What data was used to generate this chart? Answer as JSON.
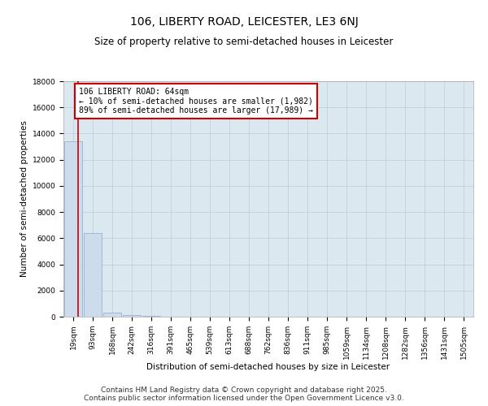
{
  "title": "106, LIBERTY ROAD, LEICESTER, LE3 6NJ",
  "subtitle": "Size of property relative to semi-detached houses in Leicester",
  "xlabel": "Distribution of semi-detached houses by size in Leicester",
  "ylabel": "Number of semi-detached properties",
  "bin_labels": [
    "19sqm",
    "93sqm",
    "168sqm",
    "242sqm",
    "316sqm",
    "391sqm",
    "465sqm",
    "539sqm",
    "613sqm",
    "688sqm",
    "762sqm",
    "836sqm",
    "911sqm",
    "985sqm",
    "1059sqm",
    "1134sqm",
    "1208sqm",
    "1282sqm",
    "1356sqm",
    "1431sqm",
    "1505sqm"
  ],
  "bar_values": [
    13400,
    6400,
    340,
    100,
    40,
    20,
    10,
    8,
    6,
    5,
    4,
    3,
    3,
    2,
    2,
    2,
    1,
    1,
    1,
    1,
    1
  ],
  "bar_color": "#ccdcec",
  "bar_edgecolor": "#88aacc",
  "property_line_color": "#cc0000",
  "annotation_text": "106 LIBERTY ROAD: 64sqm\n← 10% of semi-detached houses are smaller (1,982)\n89% of semi-detached houses are larger (17,989) →",
  "annotation_box_color": "#cc0000",
  "ylim": [
    0,
    18000
  ],
  "yticks": [
    0,
    2000,
    4000,
    6000,
    8000,
    10000,
    12000,
    14000,
    16000,
    18000
  ],
  "background_color": "#ffffff",
  "plot_bg_color": "#dce8f0",
  "grid_color": "#bbccdd",
  "footer_line1": "Contains HM Land Registry data © Crown copyright and database right 2025.",
  "footer_line2": "Contains public sector information licensed under the Open Government Licence v3.0.",
  "title_fontsize": 10,
  "subtitle_fontsize": 8.5,
  "label_fontsize": 7.5,
  "tick_fontsize": 6.5,
  "annotation_fontsize": 7,
  "footer_fontsize": 6.5
}
